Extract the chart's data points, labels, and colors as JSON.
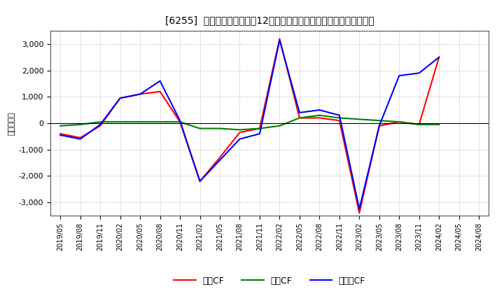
{
  "title": "[6255]  キャッシュフローの12か月移動合計の対前年同期増減額の推移",
  "ylabel": "（百万円）",
  "background_color": "#ffffff",
  "grid_color": "#aaaaaa",
  "x_labels": [
    "2019/05",
    "2019/08",
    "2019/11",
    "2020/02",
    "2020/05",
    "2020/08",
    "2020/11",
    "2021/02",
    "2021/05",
    "2021/08",
    "2021/11",
    "2022/02",
    "2022/05",
    "2022/08",
    "2022/11",
    "2023/02",
    "2023/05",
    "2023/08",
    "2023/11",
    "2024/02",
    "2024/05",
    "2024/08"
  ],
  "eigyo_CF": [
    -400,
    -550,
    -100,
    950,
    1100,
    1200,
    50,
    -2200,
    -1300,
    -350,
    -200,
    3200,
    200,
    200,
    100,
    -3400,
    -100,
    50,
    -50,
    2500,
    null,
    null
  ],
  "toshi_CF": [
    -100,
    -50,
    50,
    50,
    50,
    50,
    50,
    -200,
    -200,
    -250,
    -200,
    -100,
    200,
    300,
    200,
    150,
    100,
    50,
    -50,
    -50,
    null,
    null
  ],
  "free_CF": [
    -450,
    -600,
    -50,
    950,
    1100,
    1600,
    100,
    -2200,
    -1400,
    -600,
    -400,
    3150,
    400,
    500,
    300,
    -3250,
    -100,
    1800,
    1900,
    2500,
    null,
    null
  ],
  "legend_labels": [
    "営業CF",
    "投資CF",
    "フリーCF"
  ],
  "ylim": [
    -3500,
    3500
  ],
  "yticks": [
    -3000,
    -2000,
    -1000,
    0,
    1000,
    2000,
    3000
  ],
  "colors": {
    "eigyo": "#ff0000",
    "toshi": "#008000",
    "free": "#0000ff"
  }
}
